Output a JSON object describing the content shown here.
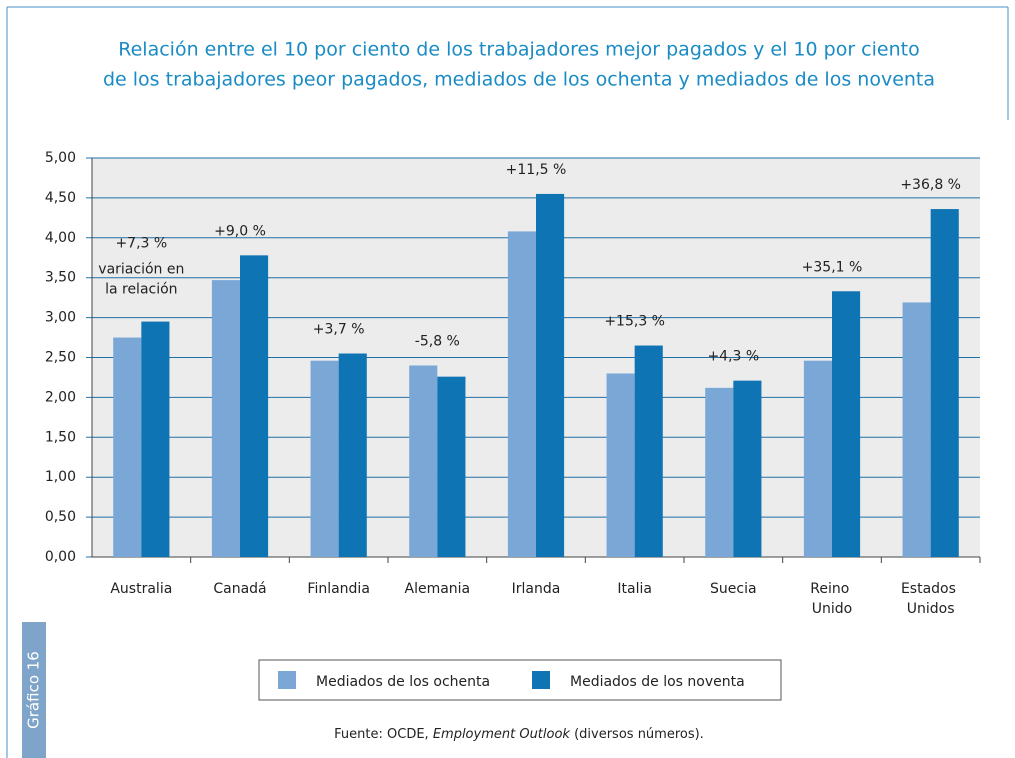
{
  "chart_data": {
    "type": "bar",
    "title_lines": [
      "Relación entre el 10 por ciento de los trabajadores mejor pagados y el 10 por ciento",
      "de los trabajadores peor pagados, mediados de los ochenta y mediados de los noventa"
    ],
    "categories": [
      "Australia",
      "Canadá",
      "Finlandia",
      "Alemania",
      "Irlanda",
      "Italia",
      "Suecia",
      "Reino Unido",
      "Estados Unidos"
    ],
    "series": [
      {
        "name": "Mediados de los ochenta",
        "color": "#7ba7d7",
        "values": [
          2.75,
          3.47,
          2.46,
          2.4,
          4.08,
          2.3,
          2.12,
          2.46,
          3.19
        ]
      },
      {
        "name": "Mediados de los noventa",
        "color": "#0f74b4",
        "values": [
          2.95,
          3.78,
          2.55,
          2.26,
          4.55,
          2.65,
          2.21,
          3.33,
          4.36
        ]
      }
    ],
    "change_labels": [
      "+7,3 %",
      "+9,0 %",
      "+3,7 %",
      "-5,8 %",
      "+11,5 %",
      "+15,3 %",
      "+4,3 %",
      "+35,1 %",
      "+36,8 %"
    ],
    "change_note": [
      "variación en",
      "la relación"
    ],
    "ylim": [
      0,
      5
    ],
    "yticks": [
      {
        "value": 0,
        "label": "0,00"
      },
      {
        "value": 0.5,
        "label": "0,50"
      },
      {
        "value": 1,
        "label": "1,00"
      },
      {
        "value": 1.5,
        "label": "1,50"
      },
      {
        "value": 2,
        "label": "2,00"
      },
      {
        "value": 2.5,
        "label": "2,50"
      },
      {
        "value": 3,
        "label": "3,00"
      },
      {
        "value": 3.5,
        "label": "3,50"
      },
      {
        "value": 4,
        "label": "4,00"
      },
      {
        "value": 4.5,
        "label": "4,50"
      },
      {
        "value": 5,
        "label": "5,00"
      }
    ],
    "grid": true,
    "legend": "bottom",
    "source": {
      "prefix": "Fuente: OCDE, ",
      "italic": "Employment Outlook",
      "suffix": " (diversos números)."
    },
    "figure_label": "Gráfico 16"
  }
}
